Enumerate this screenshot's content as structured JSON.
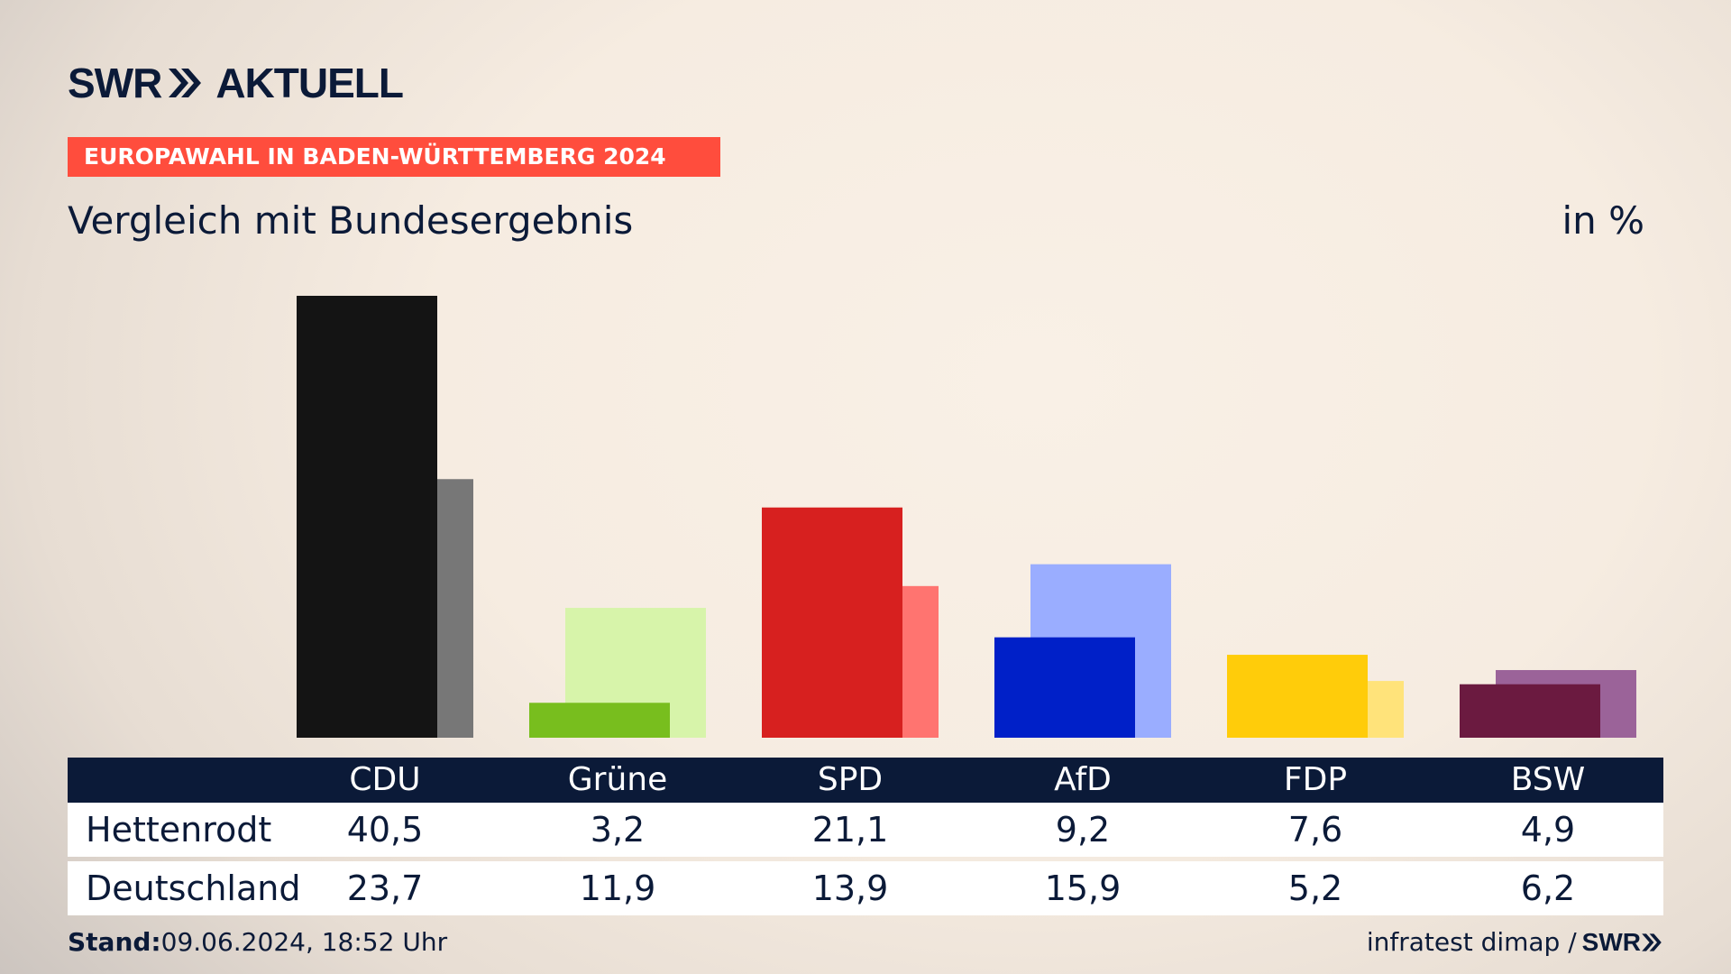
{
  "header": {
    "logo_left": "SWR",
    "logo_right": "AKTUELL",
    "tagline": "EUROPAWAHL IN BADEN-WÜRTTEMBERG 2024",
    "title": "Vergleich mit Bundesergebnis",
    "unit": "in %"
  },
  "chart_data": {
    "type": "bar",
    "categories": [
      "CDU",
      "Grüne",
      "SPD",
      "AfD",
      "FDP",
      "BSW"
    ],
    "series": [
      {
        "name": "Hettenrodt",
        "values": [
          40.5,
          3.2,
          21.1,
          9.2,
          7.6,
          4.9
        ]
      },
      {
        "name": "Deutschland",
        "values": [
          23.7,
          11.9,
          13.9,
          15.9,
          5.2,
          6.2
        ]
      }
    ],
    "colors": {
      "primary": [
        "#141414",
        "#78be1e",
        "#d7201f",
        "#0020c8",
        "#ffcc0a",
        "#6b1a40"
      ],
      "secondary": [
        "#777777",
        "#d7f4aa",
        "#ff7470",
        "#9aadff",
        "#ffe37a",
        "#9b6399"
      ]
    },
    "ylim": [
      0,
      40.5
    ]
  },
  "table": {
    "rows": [
      {
        "label": "Hettenrodt",
        "values": [
          "40,5",
          "3,2",
          "21,1",
          "9,2",
          "7,6",
          "4,9"
        ]
      },
      {
        "label": "Deutschland",
        "values": [
          "23,7",
          "11,9",
          "13,9",
          "15,9",
          "5,2",
          "6,2"
        ]
      }
    ]
  },
  "footer": {
    "stand_label": "Stand:",
    "stand_value": "09.06.2024, 18:52 Uhr",
    "source": "infratest dimap",
    "separator": "/",
    "source_logo": "SWR"
  }
}
